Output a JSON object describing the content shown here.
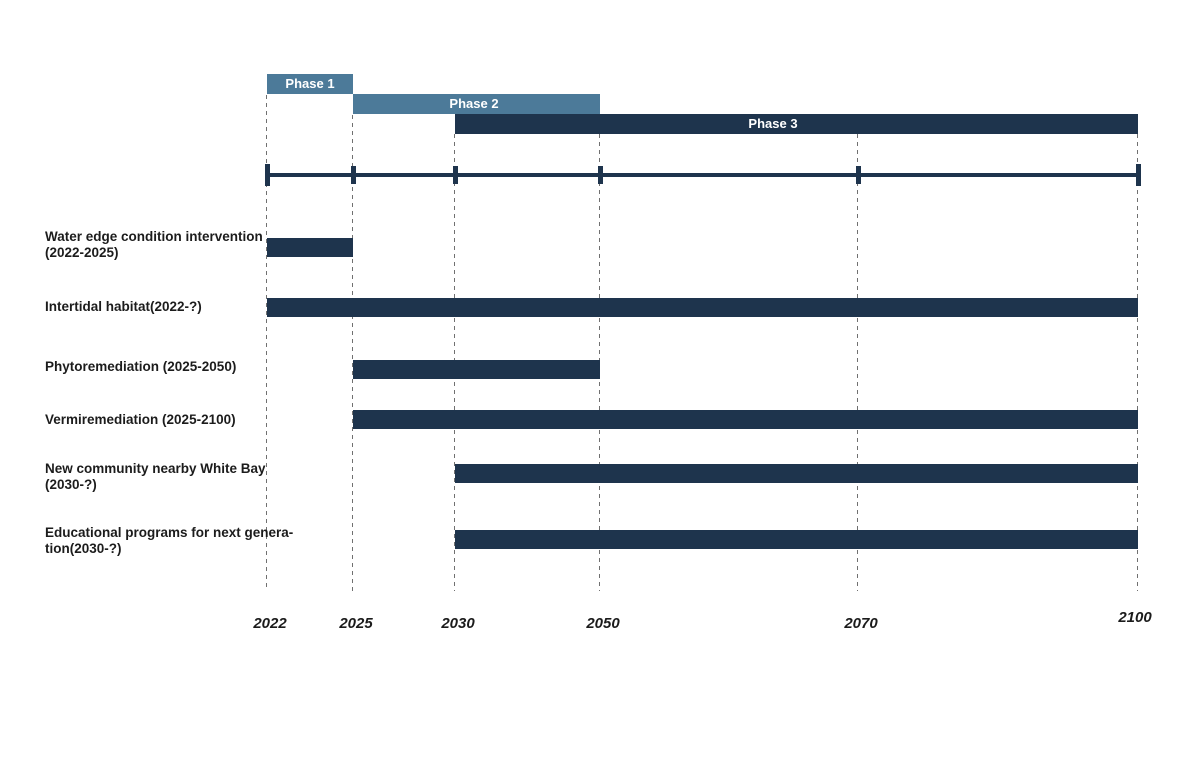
{
  "page": {
    "background": "#ffffff"
  },
  "colors": {
    "phase_steel_blue": "#4c7a99",
    "bar_navy": "#1e344d",
    "axis_navy": "#1e344d",
    "gridline_gray": "#707070",
    "task_label_text": "#1c1c1c",
    "year_label_text": "#1b1b1b",
    "phase_label_text": "#ffffff"
  },
  "chart_data": {
    "type": "gantt",
    "title": "",
    "x_axis": {
      "unit": "year",
      "range": [
        2022,
        2100
      ],
      "ticks": [
        2022,
        2025,
        2030,
        2050,
        2070,
        2100
      ],
      "tick_labels": [
        "2022",
        "2025",
        "2030",
        "2050",
        "2070",
        "2100"
      ],
      "gridlines": "dashed-vertical"
    },
    "phases": [
      {
        "label": "Phase 1",
        "start": 2022,
        "end": 2025,
        "color": "#4c7a99"
      },
      {
        "label": "Phase 2",
        "start": 2025,
        "end": 2050,
        "color": "#4c7a99"
      },
      {
        "label": "Phase 3",
        "start": 2030,
        "end": 2100,
        "color": "#1e344d"
      }
    ],
    "tasks": [
      {
        "label": "Water edge condition intervention (2022-2025)",
        "display_lines": [
          "Water edge condition intervention",
          "(2022-2025)"
        ],
        "start": 2022,
        "end": 2025,
        "open_ended": false,
        "color": "#1e344d"
      },
      {
        "label": "Intertidal habitat(2022-?)",
        "display_lines": [
          "Intertidal habitat(2022-?)"
        ],
        "start": 2022,
        "end": 2100,
        "open_ended": true,
        "color": "#1e344d"
      },
      {
        "label": "Phytoremediation (2025-2050)",
        "display_lines": [
          "Phytoremediation (2025-2050)"
        ],
        "start": 2025,
        "end": 2050,
        "open_ended": false,
        "color": "#1e344d"
      },
      {
        "label": "Vermiremediation (2025-2100)",
        "display_lines": [
          "Vermiremediation (2025-2100)"
        ],
        "start": 2025,
        "end": 2100,
        "open_ended": false,
        "color": "#1e344d"
      },
      {
        "label": "New community nearby White Bay (2030-?)",
        "display_lines": [
          "New community nearby White Bay",
          "(2030-?)"
        ],
        "start": 2030,
        "end": 2100,
        "open_ended": true,
        "color": "#1e344d"
      },
      {
        "label": "Educational programs for next generation(2030-?)",
        "display_lines": [
          "Educational programs for next genera-",
          "tion(2030-?)"
        ],
        "start": 2030,
        "end": 2100,
        "open_ended": true,
        "color": "#1e344d"
      }
    ]
  }
}
